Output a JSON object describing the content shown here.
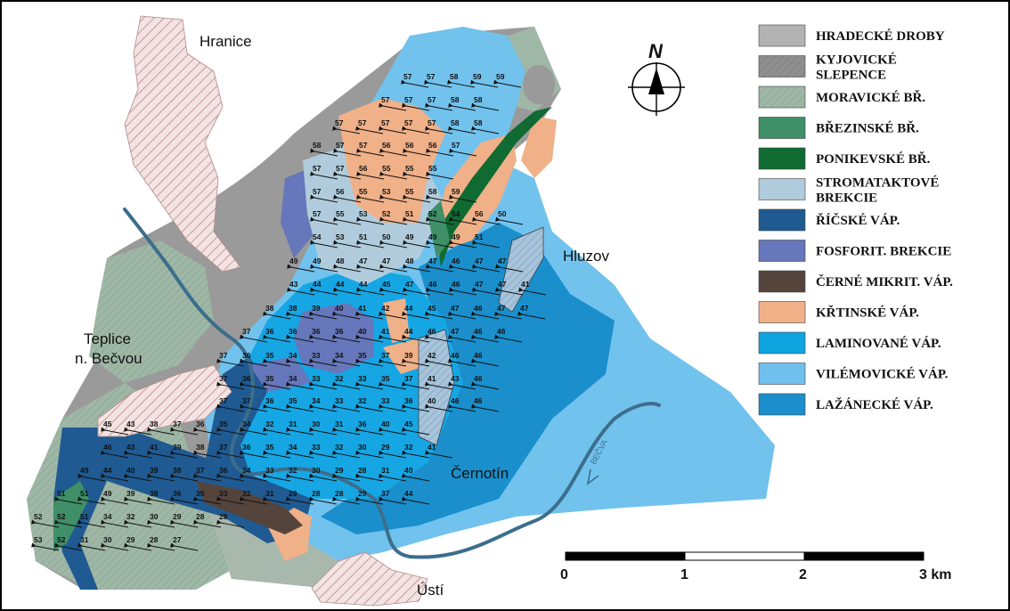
{
  "towns": {
    "hranice": "Hranice",
    "hluzov": "Hluzov",
    "teplice_line1": "Teplice",
    "teplice_line2": "n. Bečvou",
    "cernotin": "Černotín",
    "usti": "Ústí"
  },
  "river": {
    "label": "BEČVA"
  },
  "compass": {
    "label": "N"
  },
  "scale": {
    "ticks": [
      "0",
      "1",
      "2",
      "3 km"
    ]
  },
  "legend": [
    {
      "label": "HRADECKÉ DROBY",
      "color": "#b3b3b3",
      "pattern": "none"
    },
    {
      "label": "KYJOVICKÉ",
      "label2": "SLEPENCE",
      "color": "#8f8f8f",
      "pattern": "hatch"
    },
    {
      "label": "MORAVICKÉ BŘ.",
      "color": "#9fb7a6",
      "pattern": "hatch"
    },
    {
      "label": "BŘEZINSKÉ BŘ.",
      "color": "#3f8f68",
      "pattern": "none"
    },
    {
      "label": "PONIKEVSKÉ BŘ.",
      "color": "#0f6b32",
      "pattern": "none"
    },
    {
      "label": "STROMATAKTOVÉ",
      "label2": "BREKCIE",
      "color": "#b0ccdc",
      "pattern": "none"
    },
    {
      "label": "ŘÍČSKÉ VÁP.",
      "color": "#1f5a92",
      "pattern": "none"
    },
    {
      "label": "FOSFORIT. BREKCIE",
      "color": "#6677bb",
      "pattern": "none"
    },
    {
      "label": "ČERNÉ MIKRIT. VÁP.",
      "color": "#55443c",
      "pattern": "none"
    },
    {
      "label": "KŘTINSKÉ VÁP.",
      "color": "#f0b088",
      "pattern": "none"
    },
    {
      "label": "LAMINOVANÉ VÁP.",
      "color": "#0ea4e0",
      "pattern": "none"
    },
    {
      "label": "VILÉMOVICKÉ VÁP.",
      "color": "#70c0ee",
      "pattern": "none"
    },
    {
      "label": "LAŽÁNECKÉ VÁP.",
      "color": "#1a8fcc",
      "pattern": "none"
    }
  ],
  "dip_rows": [
    [
      "57",
      "57",
      "58",
      "59",
      "59"
    ],
    [
      "57",
      "57",
      "57",
      "58",
      "58"
    ],
    [
      "57",
      "57",
      "57",
      "57",
      "57",
      "58",
      "58"
    ],
    [
      "58",
      "57",
      "57",
      "56",
      "56",
      "56",
      "57"
    ],
    [
      "57",
      "57",
      "56",
      "55",
      "55",
      "55"
    ],
    [
      "57",
      "56",
      "55",
      "53",
      "55",
      "58",
      "59"
    ],
    [
      "57",
      "55",
      "53",
      "52",
      "51",
      "52",
      "54",
      "56",
      "50"
    ],
    [
      "54",
      "53",
      "51",
      "50",
      "49",
      "49",
      "49",
      "51"
    ],
    [
      "49",
      "49",
      "48",
      "47",
      "47",
      "48",
      "47",
      "46",
      "47",
      "47"
    ],
    [
      "43",
      "44",
      "44",
      "44",
      "45",
      "47",
      "46",
      "46",
      "47",
      "47",
      "41"
    ],
    [
      "38",
      "38",
      "39",
      "40",
      "41",
      "42",
      "44",
      "45",
      "47",
      "46",
      "47",
      "47"
    ],
    [
      "37",
      "36",
      "36",
      "36",
      "36",
      "40",
      "41",
      "44",
      "46",
      "47",
      "46",
      "46"
    ],
    [
      "37",
      "36",
      "35",
      "34",
      "33",
      "34",
      "35",
      "37",
      "39",
      "42",
      "46",
      "46"
    ],
    [
      "37",
      "36",
      "35",
      "34",
      "33",
      "32",
      "33",
      "35",
      "37",
      "41",
      "43",
      "46"
    ],
    [
      "37",
      "37",
      "36",
      "35",
      "34",
      "33",
      "32",
      "33",
      "36",
      "40",
      "46",
      "46"
    ],
    [
      "45",
      "43",
      "38",
      "37",
      "36",
      "35",
      "34",
      "32",
      "31",
      "30",
      "31",
      "36",
      "40",
      "45"
    ],
    [
      "46",
      "43",
      "41",
      "39",
      "38",
      "37",
      "36",
      "35",
      "34",
      "33",
      "32",
      "30",
      "29",
      "32",
      "41"
    ],
    [
      "49",
      "44",
      "40",
      "39",
      "38",
      "37",
      "36",
      "34",
      "33",
      "32",
      "30",
      "29",
      "28",
      "31",
      "40"
    ],
    [
      "51",
      "51",
      "49",
      "39",
      "38",
      "36",
      "35",
      "33",
      "32",
      "31",
      "29",
      "28",
      "28",
      "29",
      "37",
      "44"
    ],
    [
      "52",
      "52",
      "51",
      "34",
      "32",
      "30",
      "29",
      "28",
      "28"
    ],
    [
      "53",
      "52",
      "31",
      "30",
      "29",
      "28",
      "27"
    ]
  ]
}
